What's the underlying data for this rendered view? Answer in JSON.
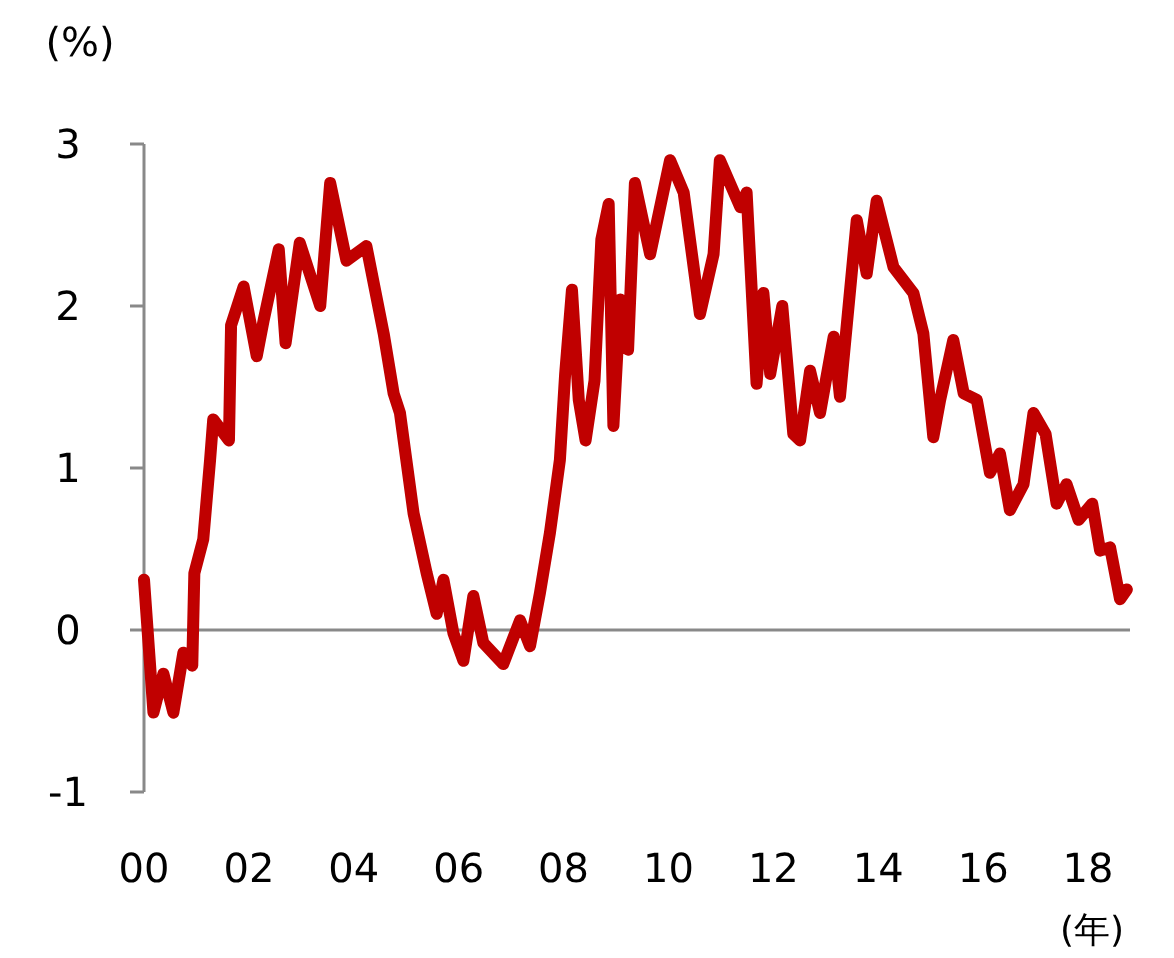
{
  "chart_data": {
    "type": "line",
    "xlabel": "(年)",
    "ylabel": "(%)",
    "xlim": [
      0,
      18.8
    ],
    "xticks": [
      {
        "value": 0,
        "label": "00"
      },
      {
        "value": 2,
        "label": "02"
      },
      {
        "value": 4,
        "label": "04"
      },
      {
        "value": 6,
        "label": "06"
      },
      {
        "value": 8,
        "label": "08"
      },
      {
        "value": 10,
        "label": "10"
      },
      {
        "value": 12,
        "label": "12"
      },
      {
        "value": 14,
        "label": "14"
      },
      {
        "value": 16,
        "label": "16"
      },
      {
        "value": 18,
        "label": "18"
      }
    ],
    "ylim": [
      -1,
      3
    ],
    "yticks": [
      -1,
      0,
      1,
      2,
      3
    ],
    "marker": "none",
    "line_style": "solid",
    "x": [
      0,
      0.18,
      0.37,
      0.56,
      0.75,
      0.92,
      0.96,
      1.13,
      1.26,
      1.32,
      1.62,
      1.66,
      1.9,
      2.15,
      2.28,
      2.57,
      2.7,
      2.97,
      3.36,
      3.55,
      3.86,
      4.24,
      4.57,
      4.76,
      4.88,
      5.14,
      5.39,
      5.58,
      5.71,
      5.9,
      6.09,
      6.28,
      6.47,
      6.85,
      7.17,
      7.36,
      7.55,
      7.74,
      7.93,
      8.03,
      8.16,
      8.29,
      8.42,
      8.59,
      8.72,
      8.86,
      8.95,
      9.08,
      9.23,
      9.36,
      9.65,
      10.03,
      10.29,
      10.6,
      10.86,
      10.98,
      11.37,
      11.49,
      11.68,
      11.81,
      11.94,
      12.17,
      12.38,
      12.51,
      12.7,
      12.89,
      13.15,
      13.27,
      13.59,
      13.78,
      13.97,
      14.29,
      14.67,
      14.86,
      15.05,
      15.18,
      15.43,
      15.63,
      15.88,
      16.13,
      16.32,
      16.51,
      16.77,
      16.96,
      17.19,
      17.4,
      17.59,
      17.82,
      18.08,
      18.23,
      18.42,
      18.61,
      18.74
    ],
    "series": [
      {
        "color": "#c00000",
        "values": [
          0.31,
          -0.51,
          -0.27,
          -0.51,
          -0.14,
          -0.22,
          0.35,
          0.56,
          1.05,
          1.3,
          1.17,
          1.88,
          2.12,
          1.69,
          1.91,
          2.35,
          1.77,
          2.39,
          2.0,
          2.76,
          2.28,
          2.37,
          1.83,
          1.46,
          1.34,
          0.72,
          0.35,
          0.1,
          0.31,
          -0.02,
          -0.19,
          0.21,
          -0.08,
          -0.21,
          0.06,
          -0.1,
          0.23,
          0.6,
          1.05,
          1.58,
          2.1,
          1.42,
          1.17,
          1.54,
          2.41,
          2.63,
          1.26,
          2.04,
          1.73,
          2.76,
          2.32,
          2.9,
          2.7,
          1.95,
          2.32,
          2.9,
          2.61,
          2.7,
          1.52,
          2.08,
          1.58,
          2.0,
          1.21,
          1.17,
          1.6,
          1.34,
          1.81,
          1.44,
          2.53,
          2.2,
          2.65,
          2.24,
          2.08,
          1.83,
          1.19,
          1.42,
          1.79,
          1.46,
          1.42,
          0.97,
          1.09,
          0.74,
          0.9,
          1.34,
          1.21,
          0.78,
          0.9,
          0.68,
          0.78,
          0.49,
          0.51,
          0.19,
          0.25
        ]
      }
    ]
  }
}
